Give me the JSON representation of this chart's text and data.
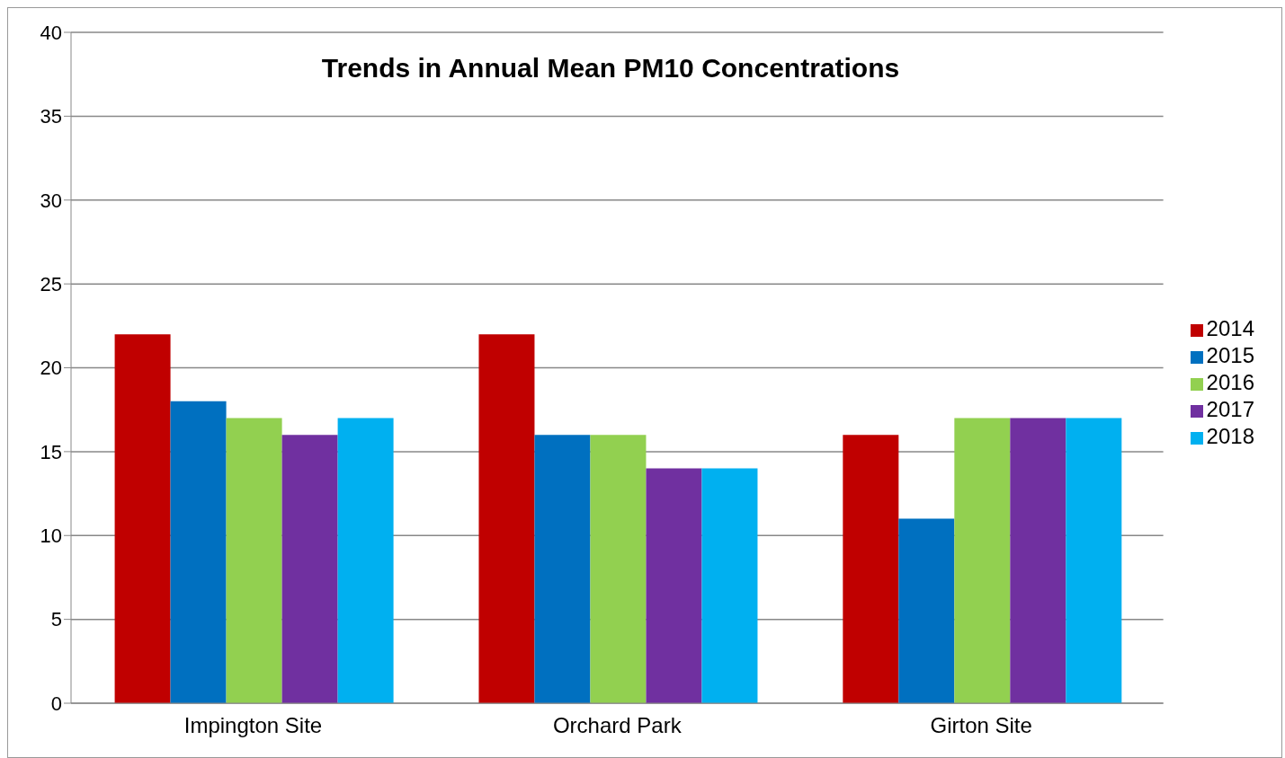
{
  "chart_data": {
    "type": "bar",
    "title": "Trends in Annual Mean PM10 Concentrations",
    "categories": [
      "Impington Site",
      "Orchard Park",
      "Girton Site"
    ],
    "series": [
      {
        "name": "2014",
        "color": "#c00000",
        "values": [
          22,
          22,
          16
        ]
      },
      {
        "name": "2015",
        "color": "#0070c0",
        "values": [
          18,
          16,
          11
        ]
      },
      {
        "name": "2016",
        "color": "#92d050",
        "values": [
          17,
          16,
          17
        ]
      },
      {
        "name": "2017",
        "color": "#7030a0",
        "values": [
          16,
          14,
          17
        ]
      },
      {
        "name": "2018",
        "color": "#00b0f0",
        "values": [
          17,
          14,
          17
        ]
      }
    ],
    "ylim": [
      0,
      40
    ],
    "yticks": [
      0,
      5,
      10,
      15,
      20,
      25,
      30,
      35,
      40
    ],
    "grid": "y",
    "legend": "right"
  }
}
